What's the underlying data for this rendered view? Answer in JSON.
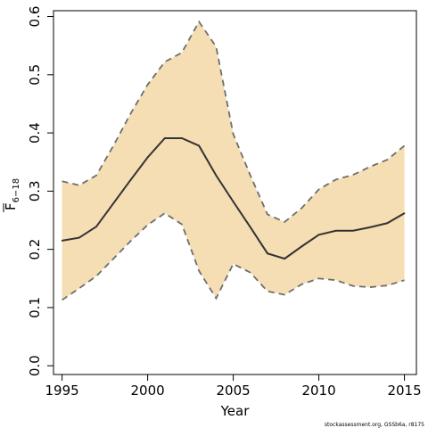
{
  "chart_data": {
    "type": "line",
    "xlabel": "Year",
    "ylabel": {
      "symbol": "F",
      "subscript": "6−18"
    },
    "xlim": [
      1994.5,
      2015.7
    ],
    "ylim": [
      -0.015,
      0.61
    ],
    "x_ticks": [
      1995,
      2000,
      2005,
      2010,
      2015
    ],
    "y_ticks": [
      0.0,
      0.1,
      0.2,
      0.3,
      0.4,
      0.5,
      0.6
    ],
    "x": [
      1995,
      1996,
      1997,
      1998,
      1999,
      2000,
      2001,
      2002,
      2003,
      2004,
      2005,
      2006,
      2007,
      2008,
      2009,
      2010,
      2011,
      2012,
      2013,
      2014,
      2015
    ],
    "series": [
      {
        "role": "estimate",
        "values": [
          0.215,
          0.22,
          0.239,
          0.279,
          0.319,
          0.358,
          0.391,
          0.391,
          0.378,
          0.327,
          0.282,
          0.238,
          0.193,
          0.184,
          0.205,
          0.225,
          0.232,
          0.232,
          0.238,
          0.245,
          0.262
        ]
      },
      {
        "role": "upper",
        "values": [
          0.317,
          0.31,
          0.327,
          0.378,
          0.433,
          0.483,
          0.522,
          0.538,
          0.591,
          0.548,
          0.398,
          0.327,
          0.26,
          0.247,
          0.271,
          0.303,
          0.32,
          0.328,
          0.342,
          0.354,
          0.378
        ]
      },
      {
        "role": "lower",
        "values": [
          0.113,
          0.133,
          0.154,
          0.184,
          0.214,
          0.242,
          0.262,
          0.243,
          0.163,
          0.116,
          0.175,
          0.16,
          0.128,
          0.122,
          0.14,
          0.15,
          0.147,
          0.137,
          0.135,
          0.138,
          0.147
        ]
      }
    ],
    "band_color": "#f5deb3",
    "line_color": "#333333",
    "bound_color": "#6e6e6e",
    "grid": false,
    "legend": "none"
  },
  "footer": "stockassessment.org, GSSb6a, r8175"
}
